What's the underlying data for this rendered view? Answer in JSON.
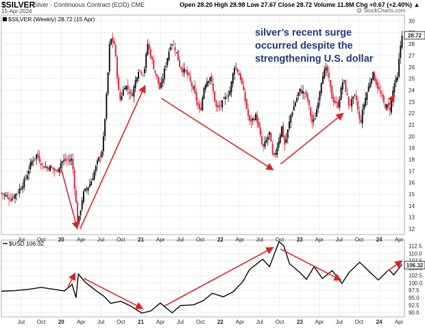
{
  "header": {
    "symbol": "$SILVER",
    "subtitle": "Silver - Continuous Contract (EOD)  CME",
    "date": "15-Apr-2024",
    "ohlc": "Open 28.20   High 28.98   Low 27.67   Close 28.72   Volume 11.8M   Chg +0.67 (+2.40%) ▲",
    "brand": "@ StockCharts.com"
  },
  "annotation": [
    "silver’s recent surge",
    "occurred despite the",
    "strengthening U.S. dollar"
  ],
  "colors": {
    "up": "#111111",
    "down": "#e0223a",
    "arrow": "#e02020",
    "line": "#000000",
    "grid": "#e6e6e6",
    "annotation": "#1f3a7a"
  },
  "chart_data": [
    {
      "type": "candlestick",
      "legend": "$SILVER (Weekly) 28.72 (15 Apr)",
      "last_value_label": "28.72",
      "ylim": [
        11.5,
        30.5
      ],
      "y_ticks": [
        "12",
        "13",
        "14",
        "15",
        "16",
        "17",
        "18",
        "19",
        "20",
        "21",
        "22",
        "23",
        "24",
        "25",
        "26",
        "27",
        "28",
        "29",
        "30"
      ],
      "x_tick_labels": [
        "Jul",
        "Oct",
        "20",
        "Apr",
        "Jul",
        "Oct",
        "21",
        "Apr",
        "Jul",
        "Oct",
        "22",
        "Apr",
        "Jul",
        "Oct",
        "23",
        "Apr",
        "Jul",
        "Oct",
        "24",
        "Apr"
      ],
      "x_tick_dates": [
        "2019-07",
        "2019-10",
        "2020-01",
        "2020-04",
        "2020-07",
        "2020-10",
        "2021-01",
        "2021-04",
        "2021-07",
        "2021-10",
        "2022-01",
        "2022-04",
        "2022-07",
        "2022-10",
        "2023-01",
        "2023-04",
        "2023-07",
        "2023-10",
        "2024-01",
        "2024-04"
      ],
      "grid": true,
      "close_path": [
        {
          "date": "2019-04-01",
          "close": 15.1
        },
        {
          "date": "2019-05-15",
          "close": 14.6
        },
        {
          "date": "2019-06-20",
          "close": 15.3
        },
        {
          "date": "2019-07-20",
          "close": 16.3
        },
        {
          "date": "2019-08-20",
          "close": 17.9
        },
        {
          "date": "2019-09-10",
          "close": 18.4
        },
        {
          "date": "2019-10-10",
          "close": 17.4
        },
        {
          "date": "2019-11-15",
          "close": 17.3
        },
        {
          "date": "2019-12-10",
          "close": 16.9
        },
        {
          "date": "2019-12-31",
          "close": 17.8
        },
        {
          "date": "2020-01-20",
          "close": 17.9
        },
        {
          "date": "2020-02-20",
          "close": 18.0
        },
        {
          "date": "2020-03-18",
          "close": 12.3
        },
        {
          "date": "2020-04-10",
          "close": 15.0
        },
        {
          "date": "2020-05-15",
          "close": 16.0
        },
        {
          "date": "2020-06-15",
          "close": 17.7
        },
        {
          "date": "2020-07-10",
          "close": 19.0
        },
        {
          "date": "2020-07-31",
          "close": 24.5
        },
        {
          "date": "2020-08-12",
          "close": 28.5
        },
        {
          "date": "2020-09-01",
          "close": 28.0
        },
        {
          "date": "2020-09-25",
          "close": 23.0
        },
        {
          "date": "2020-10-20",
          "close": 24.5
        },
        {
          "date": "2020-11-20",
          "close": 23.5
        },
        {
          "date": "2020-12-20",
          "close": 25.8
        },
        {
          "date": "2021-01-15",
          "close": 25.5
        },
        {
          "date": "2021-02-01",
          "close": 28.0
        },
        {
          "date": "2021-03-01",
          "close": 26.0
        },
        {
          "date": "2021-03-31",
          "close": 24.0
        },
        {
          "date": "2021-04-20",
          "close": 25.8
        },
        {
          "date": "2021-05-20",
          "close": 28.2
        },
        {
          "date": "2021-06-10",
          "close": 27.5
        },
        {
          "date": "2021-06-30",
          "close": 26.0
        },
        {
          "date": "2021-07-30",
          "close": 25.5
        },
        {
          "date": "2021-08-31",
          "close": 24.0
        },
        {
          "date": "2021-09-30",
          "close": 22.0
        },
        {
          "date": "2021-10-20",
          "close": 24.5
        },
        {
          "date": "2021-11-15",
          "close": 25.2
        },
        {
          "date": "2021-12-15",
          "close": 22.3
        },
        {
          "date": "2022-01-15",
          "close": 23.0
        },
        {
          "date": "2022-02-15",
          "close": 24.0
        },
        {
          "date": "2022-03-08",
          "close": 26.2
        },
        {
          "date": "2022-04-05",
          "close": 25.0
        },
        {
          "date": "2022-05-15",
          "close": 21.2
        },
        {
          "date": "2022-06-15",
          "close": 21.8
        },
        {
          "date": "2022-07-15",
          "close": 18.9
        },
        {
          "date": "2022-08-15",
          "close": 20.3
        },
        {
          "date": "2022-09-01",
          "close": 17.9
        },
        {
          "date": "2022-09-20",
          "close": 19.2
        },
        {
          "date": "2022-10-10",
          "close": 20.8
        },
        {
          "date": "2022-10-25",
          "close": 19.2
        },
        {
          "date": "2022-11-20",
          "close": 21.8
        },
        {
          "date": "2022-12-31",
          "close": 24.0
        },
        {
          "date": "2023-02-01",
          "close": 23.6
        },
        {
          "date": "2023-03-01",
          "close": 21.0
        },
        {
          "date": "2023-03-15",
          "close": 21.8
        },
        {
          "date": "2023-04-15",
          "close": 25.4
        },
        {
          "date": "2023-05-05",
          "close": 25.8
        },
        {
          "date": "2023-05-30",
          "close": 23.3
        },
        {
          "date": "2023-06-25",
          "close": 22.6
        },
        {
          "date": "2023-07-20",
          "close": 25.0
        },
        {
          "date": "2023-08-15",
          "close": 22.7
        },
        {
          "date": "2023-09-15",
          "close": 23.5
        },
        {
          "date": "2023-10-05",
          "close": 21.0
        },
        {
          "date": "2023-10-25",
          "close": 23.0
        },
        {
          "date": "2023-12-01",
          "close": 25.5
        },
        {
          "date": "2023-12-31",
          "close": 24.0
        },
        {
          "date": "2024-01-25",
          "close": 22.7
        },
        {
          "date": "2024-02-20",
          "close": 22.4
        },
        {
          "date": "2024-03-10",
          "close": 24.6
        },
        {
          "date": "2024-03-25",
          "close": 25.0
        },
        {
          "date": "2024-04-05",
          "close": 27.5
        },
        {
          "date": "2024-04-15",
          "close": 28.72
        }
      ]
    },
    {
      "type": "line",
      "legend": "$USD 106.32",
      "last_value_label": "106.32",
      "ylim": [
        88.5,
        114.5
      ],
      "y_ticks": [
        "90.0",
        "92.5",
        "95.0",
        "97.5",
        "100.0",
        "102.5",
        "105.0",
        "107.5",
        "110.0",
        "112.5"
      ],
      "x_tick_labels": [
        "Jul",
        "Oct",
        "20",
        "Apr",
        "Jul",
        "Oct",
        "21",
        "Apr",
        "Jul",
        "Oct",
        "22",
        "Apr",
        "Jul",
        "Oct",
        "23",
        "Apr",
        "Jul",
        "Oct",
        "24",
        "Apr"
      ],
      "grid": true,
      "points": [
        {
          "date": "2019-04-01",
          "value": 97.2
        },
        {
          "date": "2019-06-01",
          "value": 97.4
        },
        {
          "date": "2019-08-01",
          "value": 97.8
        },
        {
          "date": "2019-10-01",
          "value": 98.5
        },
        {
          "date": "2019-12-01",
          "value": 97.8
        },
        {
          "date": "2020-01-15",
          "value": 97.3
        },
        {
          "date": "2020-02-20",
          "value": 99.5
        },
        {
          "date": "2020-03-09",
          "value": 95.0
        },
        {
          "date": "2020-03-20",
          "value": 103.0
        },
        {
          "date": "2020-04-20",
          "value": 100.3
        },
        {
          "date": "2020-06-01",
          "value": 97.8
        },
        {
          "date": "2020-07-15",
          "value": 95.5
        },
        {
          "date": "2020-08-15",
          "value": 93.1
        },
        {
          "date": "2020-10-01",
          "value": 93.8
        },
        {
          "date": "2020-11-15",
          "value": 92.2
        },
        {
          "date": "2021-01-05",
          "value": 89.8
        },
        {
          "date": "2021-02-15",
          "value": 90.5
        },
        {
          "date": "2021-03-31",
          "value": 93.2
        },
        {
          "date": "2021-05-25",
          "value": 89.9
        },
        {
          "date": "2021-07-01",
          "value": 92.3
        },
        {
          "date": "2021-09-01",
          "value": 92.6
        },
        {
          "date": "2021-10-15",
          "value": 94.0
        },
        {
          "date": "2021-11-25",
          "value": 96.5
        },
        {
          "date": "2022-01-15",
          "value": 95.3
        },
        {
          "date": "2022-03-01",
          "value": 97.0
        },
        {
          "date": "2022-04-15",
          "value": 100.5
        },
        {
          "date": "2022-05-15",
          "value": 104.5
        },
        {
          "date": "2022-07-15",
          "value": 108.0
        },
        {
          "date": "2022-08-15",
          "value": 105.5
        },
        {
          "date": "2022-09-28",
          "value": 114.0
        },
        {
          "date": "2022-10-20",
          "value": 112.5
        },
        {
          "date": "2022-11-15",
          "value": 106.5
        },
        {
          "date": "2023-01-01",
          "value": 103.6
        },
        {
          "date": "2023-02-01",
          "value": 101.2
        },
        {
          "date": "2023-03-08",
          "value": 105.5
        },
        {
          "date": "2023-04-15",
          "value": 101.5
        },
        {
          "date": "2023-05-30",
          "value": 104.2
        },
        {
          "date": "2023-07-14",
          "value": 99.8
        },
        {
          "date": "2023-08-15",
          "value": 103.5
        },
        {
          "date": "2023-10-03",
          "value": 107.0
        },
        {
          "date": "2023-11-15",
          "value": 104.0
        },
        {
          "date": "2023-12-28",
          "value": 101.0
        },
        {
          "date": "2024-02-15",
          "value": 104.5
        },
        {
          "date": "2024-03-08",
          "value": 102.7
        },
        {
          "date": "2024-04-15",
          "value": 106.32
        }
      ]
    }
  ],
  "arrows_upper": [
    {
      "from": {
        "date": "2020-01-01",
        "value": 17.2
      },
      "to": {
        "date": "2020-03-15",
        "value": 12.0
      }
    },
    {
      "from": {
        "date": "2020-03-28",
        "value": 12.0
      },
      "to": {
        "date": "2021-01-20",
        "value": 24.4
      }
    },
    {
      "from": {
        "date": "2021-04-05",
        "value": 23.3
      },
      "to": {
        "date": "2022-09-01",
        "value": 17.1
      }
    },
    {
      "from": {
        "date": "2022-10-05",
        "value": 17.6
      },
      "to": {
        "date": "2023-07-20",
        "value": 22.0
      }
    },
    {
      "from": {
        "date": "2024-02-01",
        "value": 22.3
      },
      "to": {
        "date": "2024-03-10",
        "value": 23.6
      }
    }
  ],
  "arrows_lower": [
    {
      "from": {
        "date": "2020-02-01",
        "value": 98.7
      },
      "to": {
        "date": "2020-03-05",
        "value": 103.3
      }
    },
    {
      "from": {
        "date": "2020-04-15",
        "value": 101.5
      },
      "to": {
        "date": "2021-01-10",
        "value": 91.3
      }
    },
    {
      "from": {
        "date": "2021-04-20",
        "value": 92.2
      },
      "to": {
        "date": "2022-09-01",
        "value": 112.0
      }
    },
    {
      "from": {
        "date": "2022-10-05",
        "value": 111.5
      },
      "to": {
        "date": "2023-07-10",
        "value": 100.9
      }
    },
    {
      "from": {
        "date": "2024-02-01",
        "value": 103.7
      },
      "to": {
        "date": "2024-04-15",
        "value": 107.5
      }
    }
  ]
}
